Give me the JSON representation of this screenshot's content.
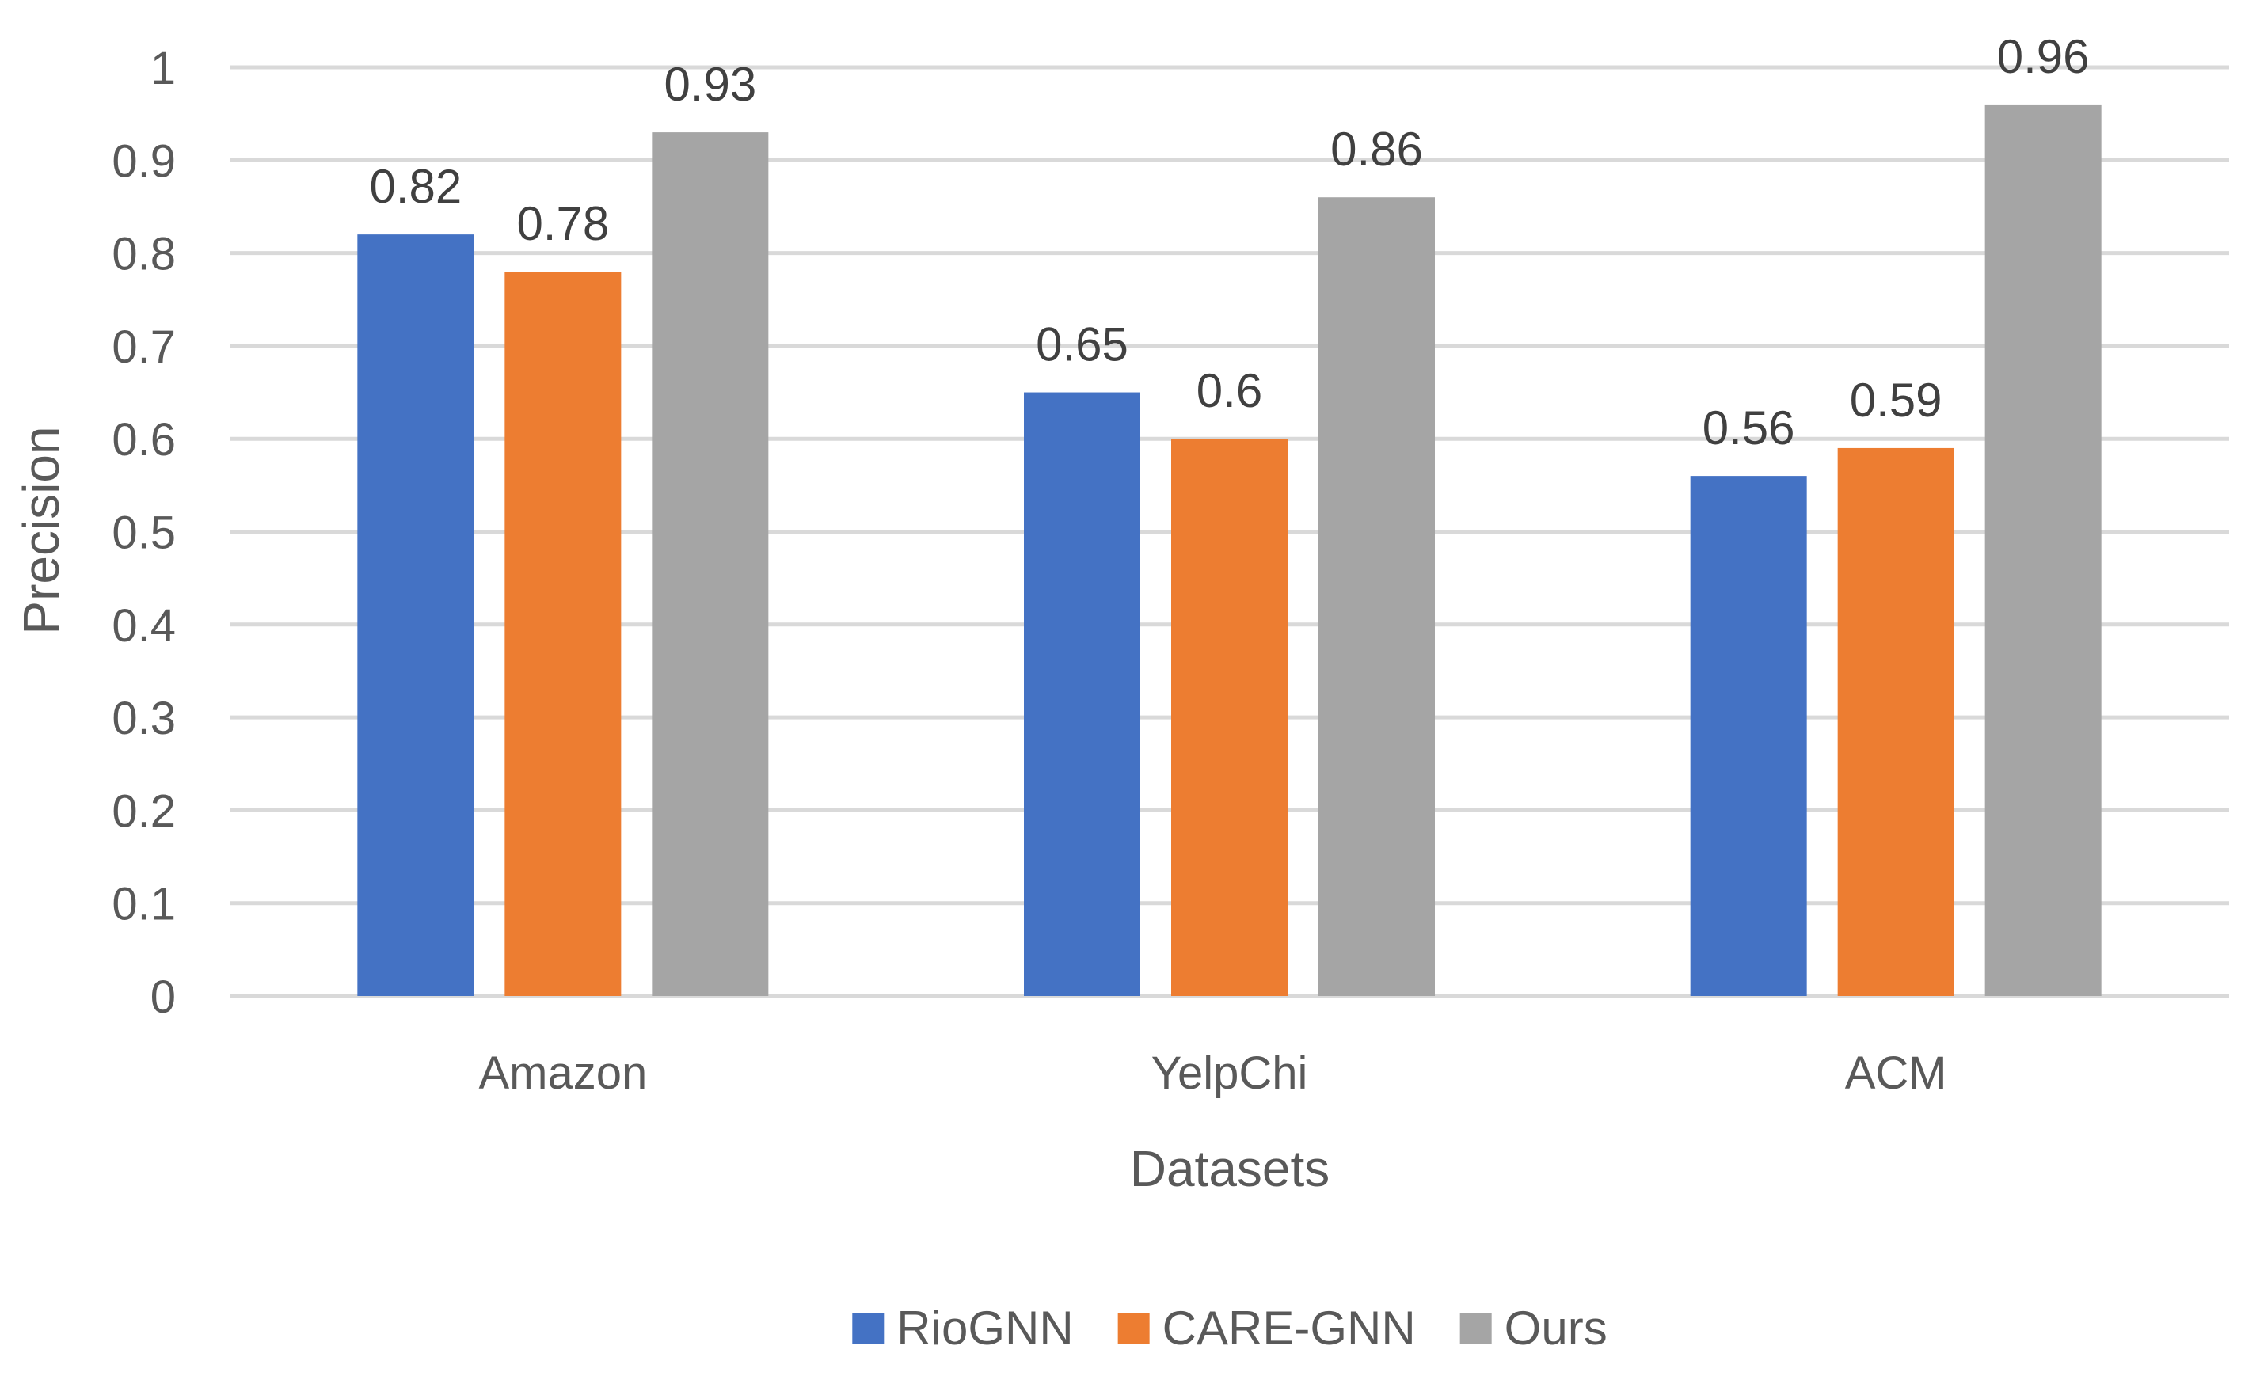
{
  "chart_data": {
    "type": "bar",
    "title": "",
    "xlabel": "Datasets",
    "ylabel": "Precision",
    "ylim": [
      0,
      1
    ],
    "yticks": [
      "0",
      "0.1",
      "0.2",
      "0.3",
      "0.4",
      "0.5",
      "0.6",
      "0.7",
      "0.8",
      "0.9",
      "1"
    ],
    "categories": [
      "Amazon",
      "YelpChi",
      "ACM"
    ],
    "series": [
      {
        "name": "RioGNN",
        "color": "#4472C4",
        "values": [
          0.82,
          0.65,
          0.56
        ],
        "labels": [
          "0.82",
          "0.65",
          "0.56"
        ]
      },
      {
        "name": "CARE-GNN",
        "color": "#ED7D31",
        "values": [
          0.78,
          0.6,
          0.59
        ],
        "labels": [
          "0.78",
          "0.6",
          "0.59"
        ]
      },
      {
        "name": "Ours",
        "color": "#A5A5A5",
        "values": [
          0.93,
          0.86,
          0.96
        ],
        "labels": [
          "0.93",
          "0.86",
          "0.96"
        ]
      }
    ],
    "grid": true,
    "legend_position": "bottom"
  }
}
